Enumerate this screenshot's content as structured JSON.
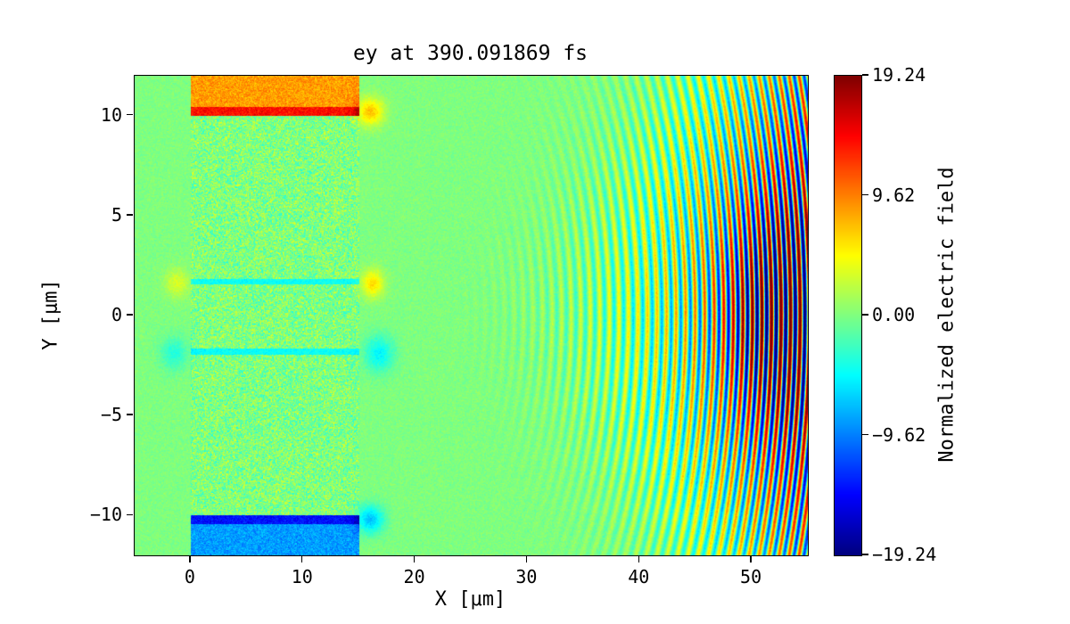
{
  "chart_data": {
    "type": "heatmap",
    "title": "ey at 390.091869 fs",
    "xlabel": "X [μm]",
    "ylabel": "Y [μm]",
    "xlim": [
      -5,
      55
    ],
    "ylim": [
      -12,
      12
    ],
    "clim": [
      -19.24,
      19.24
    ],
    "colormap": "jet",
    "grid": false,
    "legend": false,
    "xticks": [
      {
        "value": 0,
        "label": "0"
      },
      {
        "value": 10,
        "label": "10"
      },
      {
        "value": 20,
        "label": "20"
      },
      {
        "value": 30,
        "label": "30"
      },
      {
        "value": 40,
        "label": "40"
      },
      {
        "value": 50,
        "label": "50"
      }
    ],
    "yticks": [
      {
        "value": 10,
        "label": "10"
      },
      {
        "value": 5,
        "label": "5"
      },
      {
        "value": 0,
        "label": "0"
      },
      {
        "value": -5,
        "label": "−5"
      },
      {
        "value": -10,
        "label": "−10"
      }
    ],
    "colorbar": {
      "label": "Normalized electric field",
      "ticks": [
        {
          "value": 19.24,
          "label": "19.24"
        },
        {
          "value": 9.62,
          "label": "9.62"
        },
        {
          "value": 0,
          "label": "0.00"
        },
        {
          "value": -9.62,
          "label": "−9.62"
        },
        {
          "value": -19.24,
          "label": "−19.24"
        }
      ]
    },
    "features": {
      "background_noise_amp": 2.4,
      "plasma_slab": {
        "x0": 0,
        "x1": 15,
        "noise_amp": 9
      },
      "surface_bands": {
        "x0": 0,
        "x1": 15,
        "top": {
          "y0": 10,
          "y1": 12,
          "value": 8.5,
          "edge_value": 14,
          "edge_thickness": 0.45,
          "noise_amp": 5
        },
        "bottom": {
          "y0": -12,
          "y1": -10,
          "value": -8.5,
          "edge_value": -14,
          "edge_thickness": 0.45,
          "noise_amp": 5
        }
      },
      "channel_lines": [
        {
          "y": 1.7,
          "half_width": 0.15,
          "value": -4.5,
          "noise_amp": 3
        },
        {
          "y": -1.8,
          "half_width": 0.15,
          "value": -4.5,
          "noise_amp": 3
        }
      ],
      "blobs": [
        {
          "x": 16.2,
          "y": 1.6,
          "sx": 1.0,
          "sy": 0.7,
          "amp": 6
        },
        {
          "x": 16.8,
          "y": -1.9,
          "sx": 1.3,
          "sy": 0.9,
          "amp": -5
        },
        {
          "x": -1.2,
          "y": 1.6,
          "sx": 1.1,
          "sy": 0.7,
          "amp": 3.5
        },
        {
          "x": -1.5,
          "y": -1.9,
          "sx": 1.2,
          "sy": 0.8,
          "amp": -3.5
        },
        {
          "x": 16.0,
          "y": 10.2,
          "sx": 1.2,
          "sy": 0.7,
          "amp": 7
        },
        {
          "x": 16.0,
          "y": -10.2,
          "sx": 1.2,
          "sy": 0.7,
          "amp": -7
        }
      ],
      "laser": {
        "center_x": 15,
        "center_y": 0,
        "wavelength": 0.85,
        "onset_x": 20,
        "ramp_length": 34,
        "ramp_power": 2.2,
        "max_amp": 19,
        "angular_sigma": 0.45,
        "hotspot": {
          "x": 51.5,
          "y": 0,
          "sx": 4.0,
          "sy": 5.0,
          "amp": 8
        }
      }
    }
  }
}
